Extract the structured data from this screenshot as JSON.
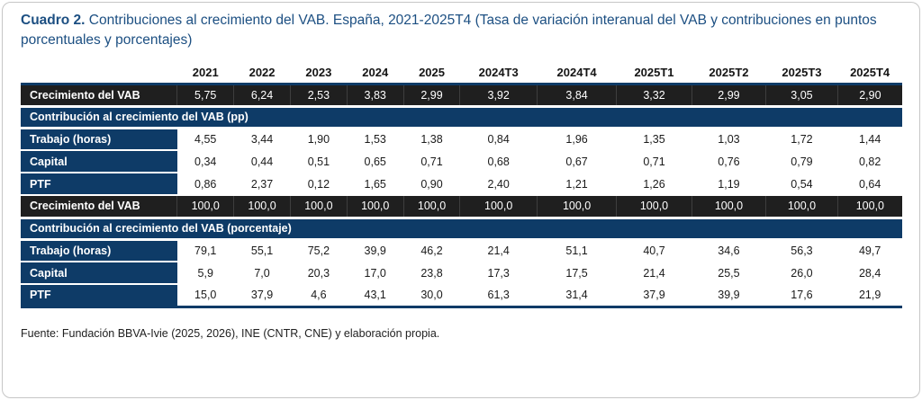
{
  "title": {
    "label": "Cuadro 2.",
    "rest": " Contribuciones al crecimiento del VAB. España, 2021-2025T4 (Tasa de variación interanual del VAB y contribuciones en puntos porcentuales y porcentajes)"
  },
  "footer": {
    "source": "Fuente: Fundación BBVA-Ivie (2025, 2026), INE (CNTR, CNE) y elaboración propia."
  },
  "colors": {
    "navy_band": "#0e3b67",
    "total_row_black": "#1f1f1f",
    "title_blue": "#1c4f82",
    "card_border_gray": "#c6c6c6"
  },
  "chart_data": {
    "type": "table",
    "title": "Cuadro 2. Contribuciones al crecimiento del VAB. España, 2021-2025T4 (Tasa de variación interanual del VAB y contribuciones en puntos porcentuales y porcentajes)",
    "columns": [
      "2021",
      "2022",
      "2023",
      "2024",
      "2025",
      "2024T3",
      "2024T4",
      "2025T1",
      "2025T2",
      "2025T3",
      "2025T4"
    ],
    "rows": [
      {
        "type": "total",
        "label": "Crecimiento del VAB",
        "values": [
          "5,75",
          "6,24",
          "2,53",
          "3,83",
          "2,99",
          "3,92",
          "3,84",
          "3,32",
          "2,99",
          "3,05",
          "2,90"
        ]
      },
      {
        "type": "section",
        "label": "Contribución al crecimiento del VAB (pp)"
      },
      {
        "type": "data",
        "label": "Trabajo (horas)",
        "values": [
          "4,55",
          "3,44",
          "1,90",
          "1,53",
          "1,38",
          "0,84",
          "1,96",
          "1,35",
          "1,03",
          "1,72",
          "1,44"
        ]
      },
      {
        "type": "data",
        "label": "Capital",
        "values": [
          "0,34",
          "0,44",
          "0,51",
          "0,65",
          "0,71",
          "0,68",
          "0,67",
          "0,71",
          "0,76",
          "0,79",
          "0,82"
        ]
      },
      {
        "type": "data",
        "label": "PTF",
        "values": [
          "0,86",
          "2,37",
          "0,12",
          "1,65",
          "0,90",
          "2,40",
          "1,21",
          "1,26",
          "1,19",
          "0,54",
          "0,64"
        ]
      },
      {
        "type": "total",
        "label": "Crecimiento del VAB",
        "values": [
          "100,0",
          "100,0",
          "100,0",
          "100,0",
          "100,0",
          "100,0",
          "100,0",
          "100,0",
          "100,0",
          "100,0",
          "100,0"
        ]
      },
      {
        "type": "section",
        "label": "Contribución al crecimiento del VAB (porcentaje)"
      },
      {
        "type": "data",
        "label": "Trabajo (horas)",
        "values": [
          "79,1",
          "55,1",
          "75,2",
          "39,9",
          "46,2",
          "21,4",
          "51,1",
          "40,7",
          "34,6",
          "56,3",
          "49,7"
        ]
      },
      {
        "type": "data",
        "label": "Capital",
        "values": [
          "5,9",
          "7,0",
          "20,3",
          "17,0",
          "23,8",
          "17,3",
          "17,5",
          "21,4",
          "25,5",
          "26,0",
          "28,4"
        ]
      },
      {
        "type": "data",
        "label": "PTF",
        "values": [
          "15,0",
          "37,9",
          "4,6",
          "43,1",
          "30,0",
          "61,3",
          "31,4",
          "37,9",
          "39,9",
          "17,6",
          "21,9"
        ]
      }
    ],
    "source": "Fuente: Fundación BBVA-Ivie (2025, 2026), INE (CNTR, CNE) y elaboración propia."
  }
}
